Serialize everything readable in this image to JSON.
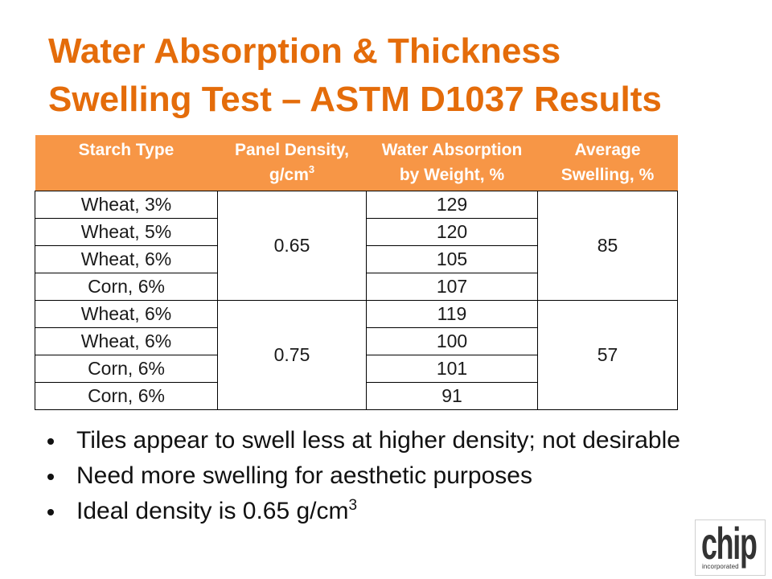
{
  "slide": {
    "title": "Water Absorption & Thickness Swelling Test – ASTM D1037 Results"
  },
  "table": {
    "headers": [
      {
        "line1": "Starch Type"
      },
      {
        "line1": "Panel Density,",
        "line2": "g/cm",
        "sup": "3"
      },
      {
        "line1": "Water Absorption",
        "line2": "by Weight, %"
      },
      {
        "line1": "Average",
        "line2": "Swelling, %"
      }
    ],
    "groups": [
      {
        "density": "0.65",
        "swelling": "85",
        "rows": [
          {
            "starch": "Wheat, 3%",
            "absorption": "129"
          },
          {
            "starch": "Wheat, 5%",
            "absorption": "120"
          },
          {
            "starch": "Wheat, 6%",
            "absorption": "105"
          },
          {
            "starch": "Corn, 6%",
            "absorption": "107"
          }
        ]
      },
      {
        "density": "0.75",
        "swelling": "57",
        "rows": [
          {
            "starch": "Wheat, 6%",
            "absorption": "119"
          },
          {
            "starch": "Wheat, 6%",
            "absorption": "100"
          },
          {
            "starch": "Corn, 6%",
            "absorption": "101"
          },
          {
            "starch": "Corn, 6%",
            "absorption": "91"
          }
        ]
      }
    ]
  },
  "bullets": [
    {
      "text": "Tiles appear to swell less at higher density; not desirable"
    },
    {
      "text": "Need more swelling for aesthetic purposes"
    },
    {
      "text": "Ideal density is 0.65 g/cm",
      "sup": "3"
    }
  ],
  "logo": {
    "name": "chip",
    "tagline": "incorporated"
  },
  "colors": {
    "title": "#E46C0A",
    "header_fill": "#F79646",
    "header_text": "#FFFFFF",
    "body_text": "#1A1A1A",
    "border": "#000000",
    "bullet_text": "#111111",
    "logo": "#333333"
  }
}
